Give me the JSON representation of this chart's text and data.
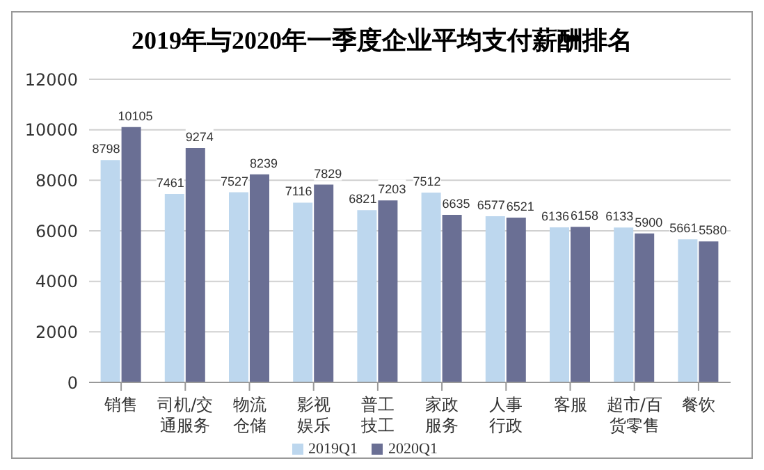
{
  "chart_data": {
    "type": "bar",
    "title": "2019年与2020年一季度企业平均支付薪酬排名",
    "categories": [
      "销售",
      "司机/交通服务",
      "物流仓储",
      "影视娱乐",
      "普工技工",
      "家政服务",
      "人事行政",
      "客服",
      "超市/百货零售",
      "餐饮"
    ],
    "series": [
      {
        "name": "2019Q1",
        "color": "#bdd7ee",
        "values": [
          8798,
          7461,
          7527,
          7116,
          6821,
          7512,
          6577,
          6136,
          6133,
          5661
        ]
      },
      {
        "name": "2020Q1",
        "color": "#6a6f94",
        "values": [
          10105,
          9274,
          8239,
          7829,
          7203,
          6635,
          6521,
          6158,
          5900,
          5580
        ]
      }
    ],
    "ylim": [
      0,
      12000
    ],
    "yticks": [
      0,
      2000,
      4000,
      6000,
      8000,
      10000,
      12000
    ],
    "grid": "y",
    "legend": "bottom",
    "data_labels": true
  }
}
